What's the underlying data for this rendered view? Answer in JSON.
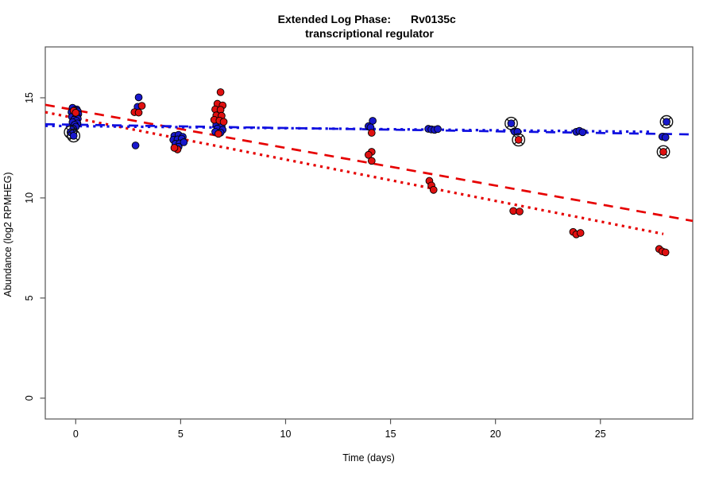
{
  "figure": {
    "title_line1_left": "Extended Log Phase:",
    "title_line1_right": "Rv0135c",
    "title_line2": "transcriptional regulator",
    "xlabel": "Time  (days)",
    "ylabel": "Abundance  (log2 RPMHEG)"
  },
  "chart_data": {
    "type": "scatter",
    "title": "Extended Log Phase: Rv0135c transcriptional regulator",
    "xlabel": "Time (days)",
    "ylabel": "Abundance (log2 RPMHEG)",
    "xlim": [
      -1.45,
      29.4
    ],
    "ylim": [
      -1.04,
      17.54
    ],
    "x_ticks": [
      0,
      5,
      10,
      15,
      20,
      25
    ],
    "y_ticks": [
      0,
      5,
      10,
      15
    ],
    "grid": "off",
    "legend": "none",
    "colors": {
      "point_red": "#e01010",
      "point_blue": "#1818cc",
      "line_red": "#e60000",
      "line_blue": "#1010e0",
      "point_edge": "#000000",
      "flag_ring": "#111111",
      "box": "#555555"
    },
    "series": [
      {
        "name": "condition-blue",
        "color": "#1818cc",
        "points": [
          [
            -0.15,
            14.5
          ],
          [
            0.05,
            14.42
          ],
          [
            -0.05,
            14.38
          ],
          [
            0.1,
            14.32
          ],
          [
            -0.2,
            14.28
          ],
          [
            0.0,
            14.22
          ],
          [
            0.12,
            14.18
          ],
          [
            -0.1,
            14.12
          ],
          [
            0.05,
            14.08
          ],
          [
            -0.18,
            14.05
          ],
          [
            0.0,
            14.0
          ],
          [
            0.1,
            13.95
          ],
          [
            -0.08,
            13.9
          ],
          [
            0.03,
            13.85
          ],
          [
            -0.15,
            13.78
          ],
          [
            0.08,
            13.72
          ],
          [
            -0.05,
            13.65
          ],
          [
            0.0,
            13.55
          ],
          [
            -0.12,
            13.45
          ],
          [
            3.0,
            15.02
          ],
          [
            2.95,
            14.55
          ],
          [
            2.85,
            12.62
          ],
          [
            4.7,
            13.1
          ],
          [
            4.9,
            13.15
          ],
          [
            5.1,
            13.05
          ],
          [
            4.65,
            12.9
          ],
          [
            4.85,
            12.92
          ],
          [
            5.05,
            12.95
          ],
          [
            4.75,
            12.7
          ],
          [
            4.95,
            12.72
          ],
          [
            5.15,
            12.78
          ],
          [
            4.9,
            12.55
          ],
          [
            6.7,
            13.66
          ],
          [
            6.95,
            13.6
          ],
          [
            6.75,
            13.46
          ],
          [
            7.0,
            13.4
          ],
          [
            6.65,
            13.3
          ],
          [
            6.9,
            13.26
          ],
          [
            14.15,
            13.85
          ],
          [
            13.95,
            13.58
          ],
          [
            14.05,
            13.52
          ],
          [
            16.8,
            13.45
          ],
          [
            16.95,
            13.42
          ],
          [
            17.1,
            13.4
          ],
          [
            17.25,
            13.44
          ],
          [
            20.9,
            13.32
          ],
          [
            21.05,
            13.3
          ],
          [
            23.85,
            13.3
          ],
          [
            24.0,
            13.35
          ],
          [
            24.15,
            13.28
          ],
          [
            27.95,
            13.06
          ],
          [
            28.1,
            13.02
          ]
        ]
      },
      {
        "name": "condition-red",
        "color": "#e01010",
        "points": [
          [
            -0.1,
            14.35
          ],
          [
            0.0,
            14.25
          ],
          [
            3.15,
            14.6
          ],
          [
            2.8,
            14.28
          ],
          [
            3.0,
            14.26
          ],
          [
            4.85,
            12.42
          ],
          [
            4.7,
            12.5
          ],
          [
            6.9,
            15.28
          ],
          [
            6.75,
            14.7
          ],
          [
            7.0,
            14.62
          ],
          [
            6.65,
            14.42
          ],
          [
            6.9,
            14.4
          ],
          [
            6.7,
            14.12
          ],
          [
            6.95,
            14.1
          ],
          [
            6.6,
            13.9
          ],
          [
            6.85,
            13.86
          ],
          [
            7.05,
            13.8
          ],
          [
            6.8,
            13.2
          ],
          [
            14.1,
            13.25
          ],
          [
            14.1,
            12.3
          ],
          [
            13.95,
            12.15
          ],
          [
            14.1,
            11.85
          ],
          [
            16.85,
            10.85
          ],
          [
            16.95,
            10.62
          ],
          [
            17.05,
            10.4
          ],
          [
            20.85,
            9.35
          ],
          [
            21.15,
            9.32
          ],
          [
            23.7,
            8.3
          ],
          [
            23.85,
            8.18
          ],
          [
            24.05,
            8.25
          ],
          [
            27.8,
            7.45
          ],
          [
            27.95,
            7.33
          ],
          [
            28.1,
            7.28
          ]
        ]
      }
    ],
    "flagged_points": [
      {
        "x": -0.25,
        "y": 13.28,
        "color": "blue"
      },
      {
        "x": -0.1,
        "y": 13.1,
        "color": "blue"
      },
      {
        "x": 20.75,
        "y": 13.72,
        "color": "blue"
      },
      {
        "x": 21.1,
        "y": 12.9,
        "color": "red"
      },
      {
        "x": 28.15,
        "y": 13.8,
        "color": "blue"
      },
      {
        "x": 28.0,
        "y": 12.3,
        "color": "red"
      }
    ],
    "trend_lines": [
      {
        "name": "red-dashed-fit",
        "color": "red",
        "style": "dashed",
        "x1": -1.45,
        "y1": 14.65,
        "x2": 29.4,
        "y2": 8.85
      },
      {
        "name": "red-dotted-fit",
        "color": "red",
        "style": "dotted",
        "x1": -1.45,
        "y1": 14.28,
        "x2": 28.0,
        "y2": 8.2
      },
      {
        "name": "blue-dashed-fit",
        "color": "blue",
        "style": "dashed",
        "x1": -1.45,
        "y1": 13.68,
        "x2": 29.4,
        "y2": 13.17
      },
      {
        "name": "blue-dotted-fit",
        "color": "blue",
        "style": "dotted",
        "x1": -1.45,
        "y1": 13.6,
        "x2": 27.5,
        "y2": 13.3
      }
    ]
  }
}
